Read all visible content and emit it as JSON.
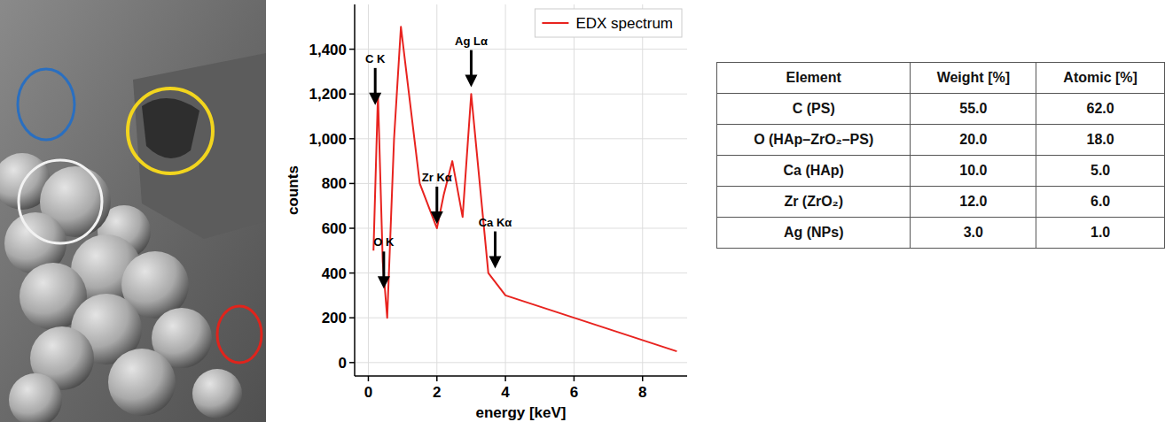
{
  "chart_data": {
    "type": "line",
    "x_label": "energy [keV]",
    "y_label": "counts",
    "x": [
      0.15,
      0.28,
      0.42,
      0.55,
      0.75,
      0.95,
      1.5,
      2.0,
      2.2,
      2.45,
      2.75,
      3.0,
      3.5,
      4.0,
      9.0
    ],
    "series": [
      {
        "name": "EDX spectrum",
        "color": "#e8231f",
        "values": [
          500,
          1200,
          450,
          200,
          1000,
          1500,
          800,
          600,
          750,
          900,
          650,
          1200,
          400,
          300,
          50
        ]
      }
    ],
    "xlim": [
      -0.4,
      9.3
    ],
    "xticks": [
      0,
      2,
      4,
      6,
      8
    ],
    "ylim": [
      -60,
      1600
    ],
    "yticks": [
      0,
      200,
      400,
      600,
      800,
      {
        "value": 1000,
        "label": "1,000"
      },
      {
        "value": 1200,
        "label": "1,200"
      },
      {
        "value": 1400,
        "label": "1,400"
      }
    ],
    "grid": true,
    "legend": "upper right",
    "annotations": [
      {
        "text": "C K",
        "x": 0.2,
        "y": 1150
      },
      {
        "text": "O K",
        "x": 0.45,
        "y": 330
      },
      {
        "text": "Zr Kα",
        "x": 2.0,
        "y": 620
      },
      {
        "text": "Ag Lα",
        "x": 3.0,
        "y": 1230
      },
      {
        "text": "Ca Kα",
        "x": 3.7,
        "y": 420
      }
    ]
  },
  "table": {
    "header": [
      "Element",
      "Weight [%]",
      "Atomic [%]"
    ],
    "rows": [
      [
        "C (PS)",
        "55.0",
        "62.0"
      ],
      [
        "O (HAp–ZrO₂–PS)",
        "20.0",
        "18.0"
      ],
      [
        "Ca (HAp)",
        "10.0",
        "5.0"
      ],
      [
        "Zr (ZrO₂)",
        "12.0",
        "6.0"
      ],
      [
        "Ag (NPs)",
        "3.0",
        "1.0"
      ]
    ]
  }
}
